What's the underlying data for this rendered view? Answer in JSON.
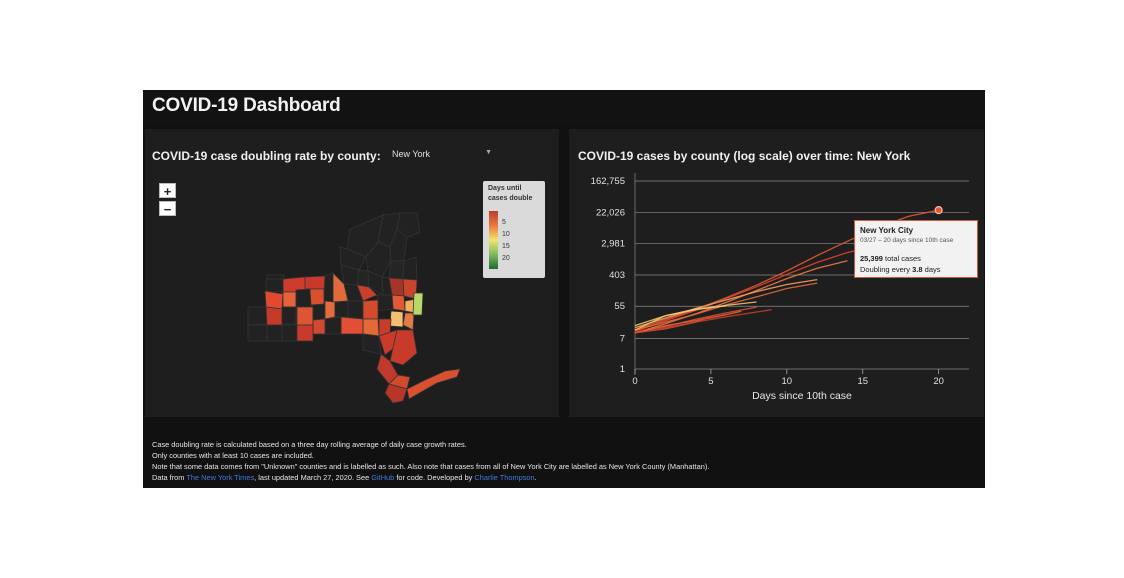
{
  "header": {
    "title": "COVID-19 Dashboard"
  },
  "map_panel": {
    "title": "COVID-19 case doubling rate by county:",
    "state_select": {
      "value": "New York",
      "chevron": "chevron-down-icon"
    },
    "zoom_in": "+",
    "zoom_out": "−",
    "legend": {
      "title_line1": "Days until",
      "title_line2": "cases double",
      "ticks": [
        "5",
        "10",
        "15",
        "20"
      ]
    }
  },
  "chart_panel": {
    "title": "COVID-19 cases by county (log scale) over time: New York"
  },
  "chart_data": {
    "type": "line",
    "title": "COVID-19 cases by county (log scale) over time: New York",
    "xlabel": "Days since 10th case",
    "ylabel": "",
    "y_scale": "log",
    "xlim": [
      0,
      22
    ],
    "ylim": [
      1,
      162755
    ],
    "x_ticks": [
      "0",
      "5",
      "10",
      "15",
      "20"
    ],
    "y_ticks": [
      "1",
      "7",
      "55",
      "403",
      "2,981",
      "22,026",
      "162,755"
    ],
    "x_tick_values": [
      0,
      5,
      10,
      15,
      20
    ],
    "y_tick_values": [
      1,
      7,
      55,
      403,
      2981,
      22026,
      162755
    ],
    "grid": true,
    "series": [
      {
        "name": "New York City",
        "color": "#e4572e",
        "x": [
          0,
          2,
          4,
          6,
          8,
          10,
          12,
          14,
          16,
          18,
          20
        ],
        "y": [
          12,
          24,
          45,
          95,
          210,
          520,
          1400,
          3500,
          8300,
          17000,
          25399
        ]
      },
      {
        "color": "#d9462a",
        "x": [
          0,
          2,
          4,
          6,
          8,
          10,
          12,
          14,
          16
        ],
        "y": [
          11,
          22,
          42,
          90,
          190,
          420,
          900,
          1700,
          2600
        ]
      },
      {
        "color": "#ea7a44",
        "x": [
          0,
          2,
          4,
          6,
          8,
          10,
          12,
          14
        ],
        "y": [
          10,
          18,
          34,
          70,
          150,
          320,
          620,
          1000
        ]
      },
      {
        "color": "#f0a060",
        "x": [
          0,
          2,
          4,
          6,
          8,
          10,
          12
        ],
        "y": [
          14,
          26,
          48,
          82,
          140,
          220,
          300
        ]
      },
      {
        "color": "#e06a3a",
        "x": [
          0,
          2,
          4,
          6,
          8,
          10,
          12
        ],
        "y": [
          12,
          20,
          33,
          60,
          100,
          170,
          240
        ]
      },
      {
        "color": "#eec070",
        "x": [
          0,
          2,
          4,
          6,
          8
        ],
        "y": [
          16,
          30,
          44,
          58,
          72
        ]
      },
      {
        "color": "#d8502c",
        "x": [
          0,
          2,
          4,
          6,
          8
        ],
        "y": [
          10,
          15,
          24,
          36,
          52
        ]
      },
      {
        "color": "#c43b28",
        "x": [
          0,
          2,
          4,
          6,
          8,
          9
        ],
        "y": [
          11,
          14,
          20,
          28,
          38,
          44
        ]
      },
      {
        "color": "#f3c97a",
        "x": [
          0,
          2,
          4,
          6
        ],
        "y": [
          12,
          30,
          46,
          56
        ]
      },
      {
        "color": "#e8643a",
        "x": [
          0,
          2,
          4,
          6,
          7
        ],
        "y": [
          10,
          16,
          22,
          32,
          40
        ]
      },
      {
        "color": "#d04a2e",
        "x": [
          0,
          2,
          4,
          5
        ],
        "y": [
          10,
          13,
          20,
          28
        ]
      }
    ]
  },
  "tooltip": {
    "county": "New York City",
    "date_line": "03/27 – 20 days since 10th case",
    "cases_bold": "25,399",
    "cases_rest": " total cases",
    "doubling_pre": "Doubling every ",
    "doubling_bold": "3.8",
    "doubling_post": " days"
  },
  "footer": {
    "line1": "Case doubling rate is calculated based on a three day rolling average of daily case growth rates.",
    "line2": "Only counties with at least 10 cases are included.",
    "line3": "Note that some data comes from \"Unknown\" counties and is labelled as such. Also note that cases from all of New York City are labelled as New York County (Manhattan).",
    "line4_pre": "Data from ",
    "link_nyt": "The New York Times",
    "line4_mid": ", last updated March 27, 2020. See ",
    "link_github": "GitHub",
    "line4_mid2": " for code. Developed by ",
    "link_author": "Charlie Thompson",
    "line4_end": "."
  },
  "colors": {
    "background": "#111111",
    "panel": "#1e1e1e",
    "link": "#3f7ad8",
    "accent": "#e4572e"
  }
}
